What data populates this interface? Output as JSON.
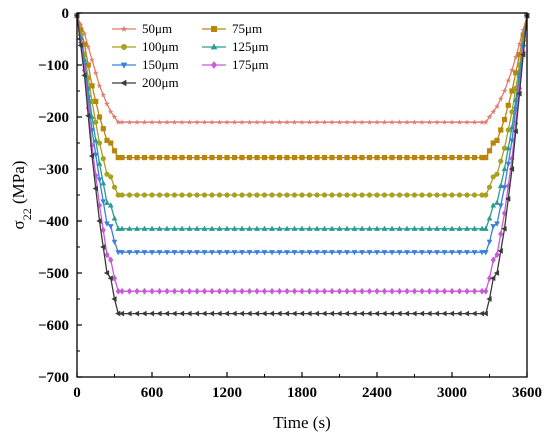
{
  "chart_data": {
    "type": "line",
    "xlabel": "Time (s)",
    "ylabel": {
      "base": "σ",
      "subscript": "22",
      "unit": " (MPa)"
    },
    "xlim": [
      0,
      3600
    ],
    "ylim": [
      -700,
      0
    ],
    "x_ticks": [
      0,
      600,
      1200,
      1800,
      2400,
      3000,
      3600
    ],
    "y_ticks": [
      0,
      -100,
      -200,
      -300,
      -400,
      -500,
      -600,
      -700
    ],
    "grid": false,
    "legend_position": "top-left",
    "series": [
      {
        "name": "50μm",
        "color": "#e07b6e",
        "marker": "star",
        "plateau": -210,
        "bump": -190,
        "points": [
          [
            0,
            -5
          ],
          [
            60,
            -40
          ],
          [
            120,
            -90
          ],
          [
            180,
            -140
          ],
          [
            240,
            -175
          ],
          [
            270,
            -190
          ],
          [
            300,
            -200
          ],
          [
            330,
            -210
          ],
          [
            3270,
            -210
          ],
          [
            3300,
            -200
          ],
          [
            3330,
            -190
          ],
          [
            3360,
            -180
          ],
          [
            3420,
            -150
          ],
          [
            3480,
            -110
          ],
          [
            3540,
            -60
          ],
          [
            3600,
            -5
          ]
        ]
      },
      {
        "name": "75μm",
        "color": "#b8860b",
        "marker": "square",
        "plateau": -278,
        "bump": -245,
        "points": [
          [
            0,
            -5
          ],
          [
            60,
            -60
          ],
          [
            120,
            -140
          ],
          [
            180,
            -200
          ],
          [
            240,
            -245
          ],
          [
            270,
            -250
          ],
          [
            300,
            -265
          ],
          [
            330,
            -278
          ],
          [
            3270,
            -278
          ],
          [
            3300,
            -265
          ],
          [
            3330,
            -250
          ],
          [
            3360,
            -245
          ],
          [
            3420,
            -205
          ],
          [
            3480,
            -150
          ],
          [
            3540,
            -80
          ],
          [
            3600,
            -5
          ]
        ]
      },
      {
        "name": "100μm",
        "color": "#a8a020",
        "marker": "circle",
        "plateau": -350,
        "bump": -310,
        "points": [
          [
            0,
            -5
          ],
          [
            60,
            -80
          ],
          [
            120,
            -170
          ],
          [
            180,
            -250
          ],
          [
            240,
            -310
          ],
          [
            270,
            -315
          ],
          [
            300,
            -335
          ],
          [
            330,
            -350
          ],
          [
            3270,
            -350
          ],
          [
            3300,
            -335
          ],
          [
            3330,
            -315
          ],
          [
            3360,
            -310
          ],
          [
            3420,
            -260
          ],
          [
            3480,
            -190
          ],
          [
            3540,
            -100
          ],
          [
            3600,
            -5
          ]
        ]
      },
      {
        "name": "125μm",
        "color": "#2a9d8f",
        "marker": "triangle",
        "plateau": -415,
        "bump": -365,
        "points": [
          [
            0,
            -5
          ],
          [
            60,
            -90
          ],
          [
            120,
            -200
          ],
          [
            180,
            -290
          ],
          [
            240,
            -365
          ],
          [
            270,
            -370
          ],
          [
            300,
            -395
          ],
          [
            330,
            -415
          ],
          [
            3270,
            -415
          ],
          [
            3300,
            -395
          ],
          [
            3330,
            -370
          ],
          [
            3360,
            -365
          ],
          [
            3420,
            -300
          ],
          [
            3480,
            -220
          ],
          [
            3540,
            -115
          ],
          [
            3600,
            -5
          ]
        ]
      },
      {
        "name": "150μm",
        "color": "#3b7fd9",
        "marker": "triangle-down",
        "plateau": -460,
        "bump": -410,
        "points": [
          [
            0,
            -5
          ],
          [
            60,
            -100
          ],
          [
            120,
            -225
          ],
          [
            180,
            -320
          ],
          [
            240,
            -405
          ],
          [
            270,
            -410
          ],
          [
            300,
            -440
          ],
          [
            330,
            -460
          ],
          [
            3270,
            -460
          ],
          [
            3300,
            -440
          ],
          [
            3330,
            -410
          ],
          [
            3360,
            -405
          ],
          [
            3420,
            -335
          ],
          [
            3480,
            -245
          ],
          [
            3540,
            -125
          ],
          [
            3600,
            -5
          ]
        ]
      },
      {
        "name": "175μm",
        "color": "#c85ad8",
        "marker": "diamond",
        "plateau": -535,
        "bump": -470,
        "points": [
          [
            0,
            -5
          ],
          [
            60,
            -110
          ],
          [
            120,
            -255
          ],
          [
            180,
            -370
          ],
          [
            240,
            -465
          ],
          [
            270,
            -475
          ],
          [
            300,
            -510
          ],
          [
            330,
            -535
          ],
          [
            3270,
            -535
          ],
          [
            3300,
            -510
          ],
          [
            3330,
            -475
          ],
          [
            3360,
            -465
          ],
          [
            3420,
            -385
          ],
          [
            3480,
            -280
          ],
          [
            3540,
            -145
          ],
          [
            3600,
            -5
          ]
        ]
      },
      {
        "name": "200μm",
        "color": "#3a3a3a",
        "marker": "triangle-left",
        "plateau": -578,
        "bump": -505,
        "points": [
          [
            0,
            -5
          ],
          [
            60,
            -120
          ],
          [
            120,
            -275
          ],
          [
            180,
            -400
          ],
          [
            240,
            -500
          ],
          [
            270,
            -510
          ],
          [
            300,
            -550
          ],
          [
            330,
            -578
          ],
          [
            3270,
            -578
          ],
          [
            3300,
            -550
          ],
          [
            3330,
            -510
          ],
          [
            3360,
            -500
          ],
          [
            3420,
            -415
          ],
          [
            3480,
            -300
          ],
          [
            3540,
            -155
          ],
          [
            3600,
            -5
          ]
        ]
      }
    ]
  }
}
